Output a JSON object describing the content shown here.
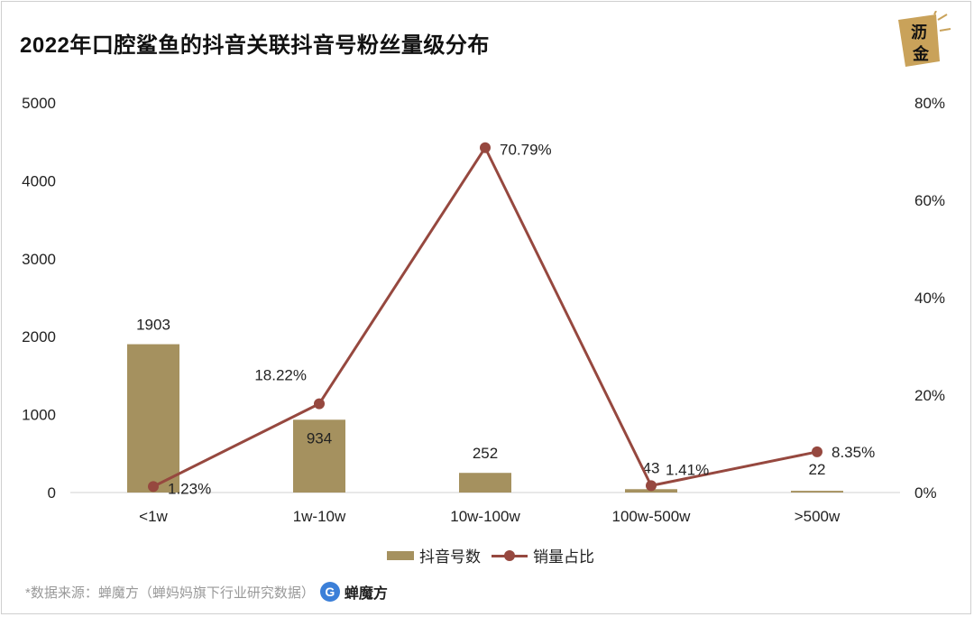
{
  "title": "2022年口腔鲨鱼的抖音关联抖音号粉丝量级分布",
  "logo": {
    "line1": "沥",
    "line2": "金"
  },
  "legend": {
    "bar_label": "抖音号数",
    "line_label": "销量占比"
  },
  "source": {
    "text": "*数据来源：蝉魔方（蝉妈妈旗下行业研究数据）",
    "logo_text": "蝉魔方",
    "logo_mark": "G"
  },
  "colors": {
    "bar": "#A5915F",
    "line": "#96483F"
  },
  "chart_data": {
    "type": "bar",
    "categories": [
      "<1w",
      "1w-10w",
      "10w-100w",
      "100w-500w",
      ">500w"
    ],
    "series": [
      {
        "name": "抖音号数",
        "type": "bar",
        "axis": "left",
        "values": [
          1903,
          934,
          252,
          43,
          22
        ],
        "labels": [
          "1903",
          "934",
          "252",
          "43",
          "22"
        ]
      },
      {
        "name": "销量占比",
        "type": "line",
        "axis": "right",
        "values": [
          1.23,
          18.22,
          70.79,
          1.41,
          8.35
        ],
        "labels": [
          "1.23%",
          "18.22%",
          "70.79%",
          "1.41%",
          "8.35%"
        ]
      }
    ],
    "y_left": {
      "min": 0,
      "max": 5000,
      "ticks": [
        "0",
        "1000",
        "2000",
        "3000",
        "4000",
        "5000"
      ]
    },
    "y_right": {
      "min": 0,
      "max": 80,
      "ticks": [
        "0%",
        "20%",
        "40%",
        "60%",
        "80%"
      ]
    },
    "grid": false,
    "legend_position": "bottom"
  }
}
